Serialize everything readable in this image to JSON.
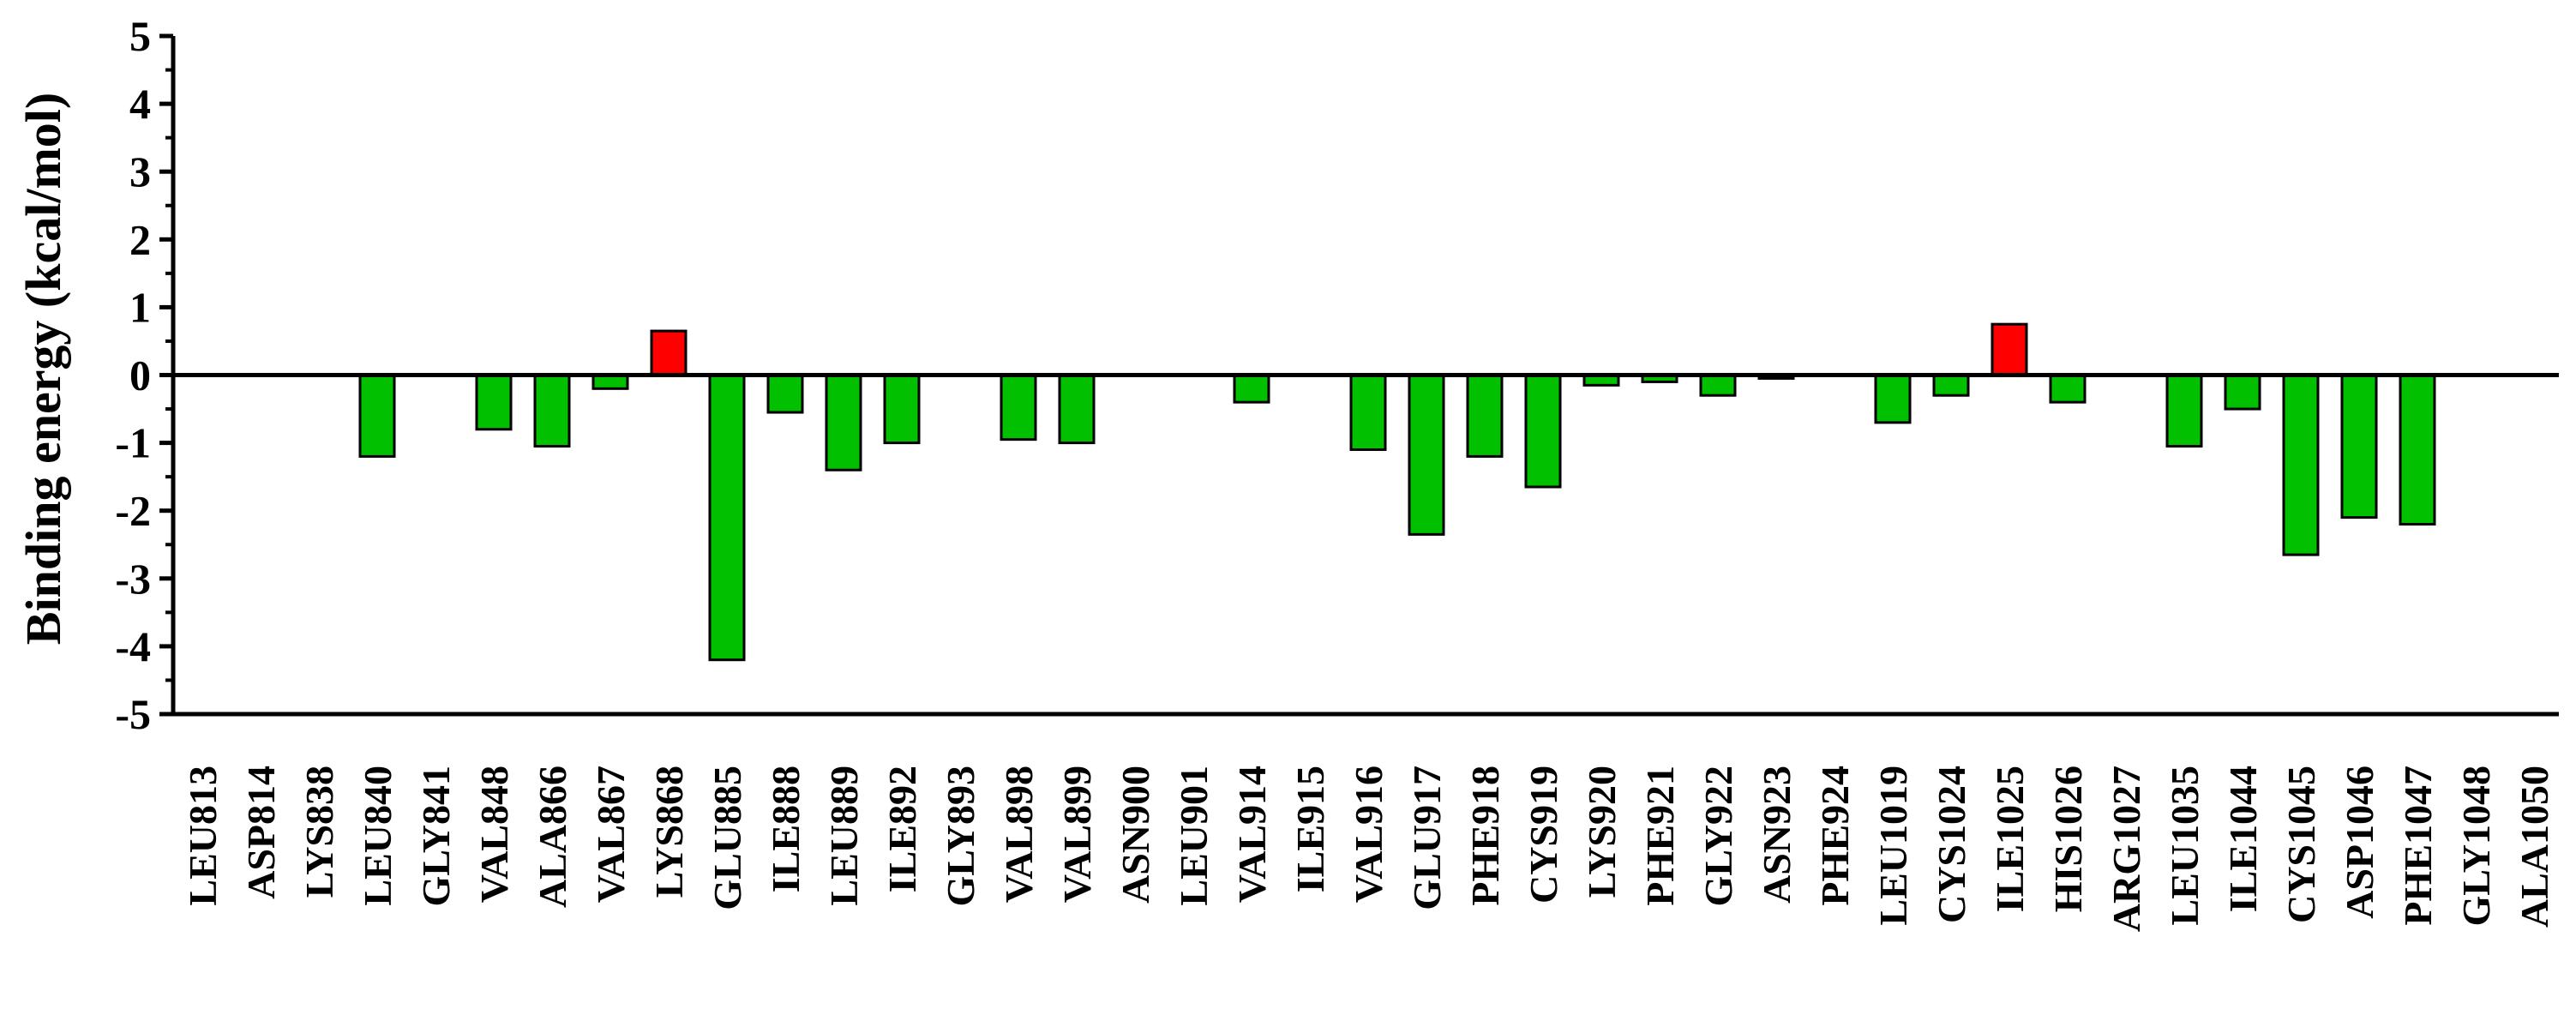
{
  "chart_data": {
    "type": "bar",
    "title": "",
    "xlabel": "",
    "ylabel": "Binding energy (kcal/mol)",
    "ylim": [
      -5,
      5
    ],
    "yticks": [
      5,
      4,
      3,
      2,
      1,
      0,
      -1,
      -2,
      -3,
      -4,
      -5
    ],
    "grid": false,
    "legend": "none",
    "colors": {
      "negative": "#00c000",
      "positive": "#ff0000",
      "stroke": "#000000"
    },
    "categories": [
      "LEU813",
      "ASP814",
      "LYS838",
      "LEU840",
      "GLY841",
      "VAL848",
      "ALA866",
      "VAL867",
      "LYS868",
      "GLU885",
      "ILE888",
      "LEU889",
      "ILE892",
      "GLY893",
      "VAL898",
      "VAL899",
      "ASN900",
      "LEU901",
      "VAL914",
      "ILE915",
      "VAL916",
      "GLU917",
      "PHE918",
      "CYS919",
      "LYS920",
      "PHE921",
      "GLY922",
      "ASN923",
      "PHE924",
      "LEU1019",
      "CYS1024",
      "ILE1025",
      "HIS1026",
      "ARG1027",
      "LEU1035",
      "ILE1044",
      "CYS1045",
      "ASP1046",
      "PHE1047",
      "GLY1048",
      "ALA1050"
    ],
    "values": [
      0,
      0,
      0,
      -1.2,
      0,
      -0.8,
      -1.05,
      -0.2,
      0.65,
      -4.2,
      -0.55,
      -1.4,
      -1.0,
      0,
      -0.95,
      -1.0,
      0,
      0,
      -0.4,
      0,
      -1.1,
      -2.35,
      -1.2,
      -1.65,
      -0.15,
      -0.1,
      -0.3,
      -0.05,
      0,
      -0.7,
      -0.3,
      0.75,
      -0.4,
      0,
      -1.05,
      -0.5,
      -2.65,
      -2.1,
      -2.2,
      0,
      0
    ]
  }
}
